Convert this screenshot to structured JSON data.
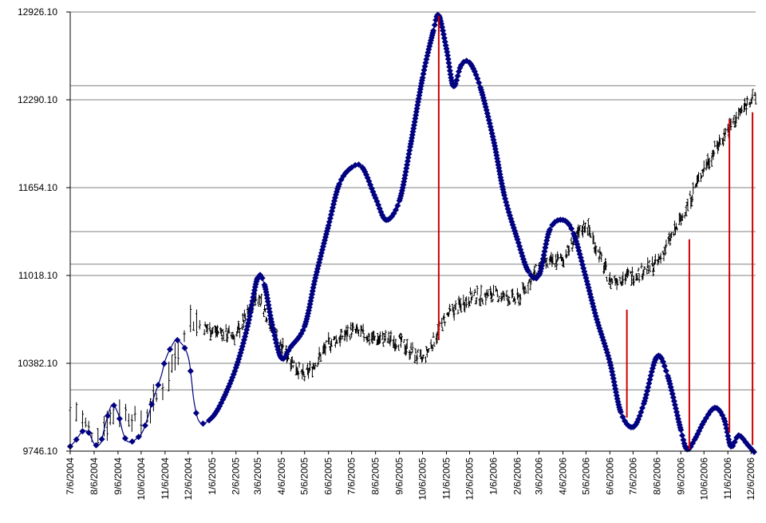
{
  "chart_data": {
    "type": "line",
    "title": "",
    "xlabel": "",
    "ylabel": "",
    "ylim": [
      9746.1,
      12926.1
    ],
    "y_ticks": [
      "12926.10",
      "12290.10",
      "11654.10",
      "11018.10",
      "10382.10",
      "9746.10"
    ],
    "x_ticks": [
      "7/6/2004",
      "8/6/2004",
      "9/6/2004",
      "10/6/2004",
      "11/6/2004",
      "12/6/2004",
      "1/6/2005",
      "2/6/2005",
      "3/6/2005",
      "4/6/2005",
      "5/6/2005",
      "6/6/2005",
      "7/6/2005",
      "8/6/2005",
      "9/6/2005",
      "10/6/2005",
      "11/6/2005",
      "12/6/2005",
      "1/6/2006",
      "2/6/2006",
      "3/6/2006",
      "4/6/2006",
      "5/6/2006",
      "6/6/2006",
      "7/6/2006",
      "8/6/2006",
      "9/6/2006",
      "10/6/2006",
      "11/6/2006",
      "12/6/2006"
    ],
    "extra_gridlines": [
      12392,
      11336,
      11100,
      10190
    ],
    "grid": true,
    "legend": "none",
    "colors": {
      "price": "#000000",
      "wave": "#000080",
      "markers": "#cc0000",
      "grid": "#808080"
    },
    "series": [
      {
        "points": [
          [
            "2004-07-06",
            9780
          ],
          [
            "2004-07-14",
            9830
          ],
          [
            "2004-07-22",
            9890
          ],
          [
            "2004-07-30",
            9880
          ],
          [
            "2004-08-06",
            9800
          ],
          [
            "2004-08-14",
            9800
          ],
          [
            "2004-08-21",
            9950
          ],
          [
            "2004-08-29",
            10080
          ],
          [
            "2004-09-06",
            10020
          ],
          [
            "2004-09-13",
            9870
          ],
          [
            "2004-09-21",
            9810
          ],
          [
            "2004-10-06",
            9870
          ],
          [
            "2004-10-14",
            9980
          ],
          [
            "2004-10-21",
            10110
          ],
          [
            "2004-11-01",
            10290
          ],
          [
            "2004-11-06",
            10400
          ],
          [
            "2004-11-14",
            10500
          ],
          [
            "2004-11-22",
            10550
          ],
          [
            "2004-12-06",
            10430
          ],
          [
            "2004-12-14",
            10090
          ],
          [
            "2004-12-22",
            9950
          ],
          [
            "2005-01-06",
            9990
          ],
          [
            "2005-01-20",
            10120
          ],
          [
            "2005-02-06",
            10350
          ],
          [
            "2005-02-21",
            10650
          ],
          [
            "2005-03-06",
            11000
          ],
          [
            "2005-03-15",
            10950
          ],
          [
            "2005-03-25",
            10660
          ],
          [
            "2005-04-06",
            10420
          ],
          [
            "2005-04-18",
            10500
          ],
          [
            "2005-05-06",
            10650
          ],
          [
            "2005-05-20",
            11000
          ],
          [
            "2005-06-06",
            11380
          ],
          [
            "2005-06-20",
            11680
          ],
          [
            "2005-07-06",
            11800
          ],
          [
            "2005-07-20",
            11800
          ],
          [
            "2005-08-06",
            11580
          ],
          [
            "2005-08-20",
            11420
          ],
          [
            "2005-09-06",
            11560
          ],
          [
            "2005-09-20",
            11950
          ],
          [
            "2005-10-06",
            12450
          ],
          [
            "2005-10-20",
            12790
          ],
          [
            "2005-10-27",
            12900
          ],
          [
            "2005-11-06",
            12660
          ],
          [
            "2005-11-15",
            12390
          ],
          [
            "2005-11-25",
            12540
          ],
          [
            "2005-12-06",
            12560
          ],
          [
            "2005-12-20",
            12380
          ],
          [
            "2006-01-06",
            12000
          ],
          [
            "2006-01-20",
            11600
          ],
          [
            "2006-02-06",
            11280
          ],
          [
            "2006-02-20",
            11050
          ],
          [
            "2006-03-06",
            11020
          ],
          [
            "2006-03-20",
            11350
          ],
          [
            "2006-04-06",
            11420
          ],
          [
            "2006-04-20",
            11320
          ],
          [
            "2006-05-06",
            11000
          ],
          [
            "2006-05-20",
            10700
          ],
          [
            "2006-06-06",
            10390
          ],
          [
            "2006-06-20",
            10030
          ],
          [
            "2006-07-06",
            9920
          ],
          [
            "2006-07-20",
            10090
          ],
          [
            "2006-08-06",
            10430
          ],
          [
            "2006-08-20",
            10290
          ],
          [
            "2006-09-06",
            9900
          ],
          [
            "2006-09-14",
            9760
          ],
          [
            "2006-09-24",
            9830
          ],
          [
            "2006-10-06",
            9960
          ],
          [
            "2006-10-20",
            10060
          ],
          [
            "2006-11-01",
            9980
          ],
          [
            "2006-11-10",
            9780
          ],
          [
            "2006-11-20",
            9860
          ],
          [
            "2006-12-02",
            9790
          ],
          [
            "2006-12-10",
            9740
          ]
        ]
      },
      {
        "style": "ohlc",
        "trend": [
          [
            "2004-07-06",
            10100
          ],
          [
            "2004-08-06",
            9850
          ],
          [
            "2004-09-06",
            10050
          ],
          [
            "2004-10-06",
            9950
          ],
          [
            "2004-11-06",
            10230
          ],
          [
            "2004-12-06",
            10700
          ],
          [
            "2005-01-06",
            10620
          ],
          [
            "2005-02-06",
            10580
          ],
          [
            "2005-03-06",
            10880
          ],
          [
            "2005-04-06",
            10500
          ],
          [
            "2005-05-06",
            10280
          ],
          [
            "2005-06-06",
            10520
          ],
          [
            "2005-07-06",
            10620
          ],
          [
            "2005-08-06",
            10560
          ],
          [
            "2005-09-06",
            10540
          ],
          [
            "2005-10-06",
            10400
          ],
          [
            "2005-11-06",
            10720
          ],
          [
            "2005-12-06",
            10860
          ],
          [
            "2006-01-06",
            10880
          ],
          [
            "2006-02-06",
            10840
          ],
          [
            "2006-03-06",
            11080
          ],
          [
            "2006-04-06",
            11140
          ],
          [
            "2006-05-06",
            11400
          ],
          [
            "2006-06-06",
            10980
          ],
          [
            "2006-07-06",
            11020
          ],
          [
            "2006-08-06",
            11100
          ],
          [
            "2006-09-06",
            11420
          ],
          [
            "2006-10-06",
            11800
          ],
          [
            "2006-11-06",
            12080
          ],
          [
            "2006-12-06",
            12300
          ],
          [
            "2006-12-12",
            12290
          ]
        ]
      }
    ],
    "vertical_markers": [
      {
        "x": "2005-10-27",
        "y_from": 10550,
        "y_to": 12900
      },
      {
        "x": "2006-06-28",
        "y_from": 9990,
        "y_to": 10770
      },
      {
        "x": "2006-09-17",
        "y_from": 9760,
        "y_to": 11280
      },
      {
        "x": "2006-11-08",
        "y_from": 9880,
        "y_to": 12150
      },
      {
        "x": "2006-12-08",
        "y_from": 9790,
        "y_to": 12200
      }
    ]
  }
}
